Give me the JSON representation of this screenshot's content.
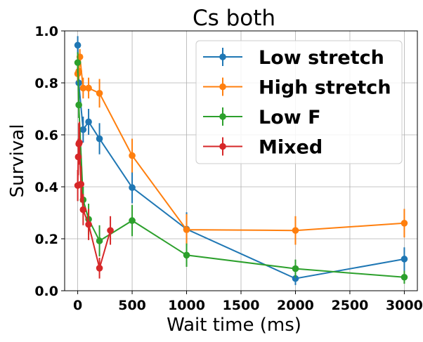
{
  "chart_data": {
    "type": "line",
    "title": "Cs both",
    "xlabel": "Wait time (ms)",
    "ylabel": "Survival",
    "xlim": [
      -120,
      3120
    ],
    "ylim": [
      0.0,
      1.0
    ],
    "xticks": [
      0,
      500,
      1000,
      1500,
      2000,
      2500,
      3000
    ],
    "yticks": [
      0.0,
      0.2,
      0.4,
      0.6,
      0.8,
      1.0
    ],
    "xtick_labels": [
      "0",
      "500",
      "1000",
      "1500",
      "2000",
      "2500",
      "3000"
    ],
    "ytick_labels": [
      "0.0",
      "0.2",
      "0.4",
      "0.6",
      "0.8",
      "1.0"
    ],
    "grid": true,
    "legend_position": "top-right",
    "series": [
      {
        "name": "Low stretch",
        "color": "#1f77b4",
        "points": [
          {
            "x": 0,
            "y": 0.945,
            "err": 0.035
          },
          {
            "x": 10,
            "y": 0.8,
            "err": 0.04
          },
          {
            "x": 50,
            "y": 0.62,
            "err": 0.05
          },
          {
            "x": 100,
            "y": 0.65,
            "err": 0.05
          },
          {
            "x": 200,
            "y": 0.585,
            "err": 0.06
          },
          {
            "x": 500,
            "y": 0.397,
            "err": 0.06
          },
          {
            "x": 1000,
            "y": 0.237,
            "err": 0.065
          },
          {
            "x": 2000,
            "y": 0.047,
            "err": 0.025
          },
          {
            "x": 3000,
            "y": 0.122,
            "err": 0.045
          }
        ]
      },
      {
        "name": "High stretch",
        "color": "#ff7f0e",
        "points": [
          {
            "x": 0,
            "y": 0.835,
            "err": 0.03
          },
          {
            "x": 10,
            "y": 0.845,
            "err": 0.03
          },
          {
            "x": 20,
            "y": 0.9,
            "err": 0.03
          },
          {
            "x": 50,
            "y": 0.78,
            "err": 0.04
          },
          {
            "x": 100,
            "y": 0.78,
            "err": 0.04
          },
          {
            "x": 200,
            "y": 0.76,
            "err": 0.055
          },
          {
            "x": 500,
            "y": 0.52,
            "err": 0.065
          },
          {
            "x": 1000,
            "y": 0.235,
            "err": 0.06
          },
          {
            "x": 2000,
            "y": 0.232,
            "err": 0.055
          },
          {
            "x": 3000,
            "y": 0.26,
            "err": 0.055
          }
        ]
      },
      {
        "name": "Low F",
        "color": "#2ca02c",
        "points": [
          {
            "x": 0,
            "y": 0.878,
            "err": 0.04
          },
          {
            "x": 10,
            "y": 0.715,
            "err": 0.05
          },
          {
            "x": 50,
            "y": 0.35,
            "err": 0.05
          },
          {
            "x": 100,
            "y": 0.275,
            "err": 0.06
          },
          {
            "x": 200,
            "y": 0.192,
            "err": 0.06
          },
          {
            "x": 500,
            "y": 0.27,
            "err": 0.06
          },
          {
            "x": 1000,
            "y": 0.137,
            "err": 0.045
          },
          {
            "x": 2000,
            "y": 0.085,
            "err": 0.035
          },
          {
            "x": 3000,
            "y": 0.052,
            "err": 0.025
          }
        ]
      },
      {
        "name": "Mixed",
        "color": "#d62728",
        "points": [
          {
            "x": 0,
            "y": 0.405,
            "err": 0.06
          },
          {
            "x": 5,
            "y": 0.515,
            "err": 0.07
          },
          {
            "x": 10,
            "y": 0.565,
            "err": 0.08
          },
          {
            "x": 15,
            "y": 0.57,
            "err": 0.08
          },
          {
            "x": 30,
            "y": 0.41,
            "err": 0.07
          },
          {
            "x": 50,
            "y": 0.312,
            "err": 0.06
          },
          {
            "x": 100,
            "y": 0.255,
            "err": 0.06
          },
          {
            "x": 200,
            "y": 0.087,
            "err": 0.04
          },
          {
            "x": 300,
            "y": 0.232,
            "err": 0.055
          }
        ]
      }
    ]
  }
}
